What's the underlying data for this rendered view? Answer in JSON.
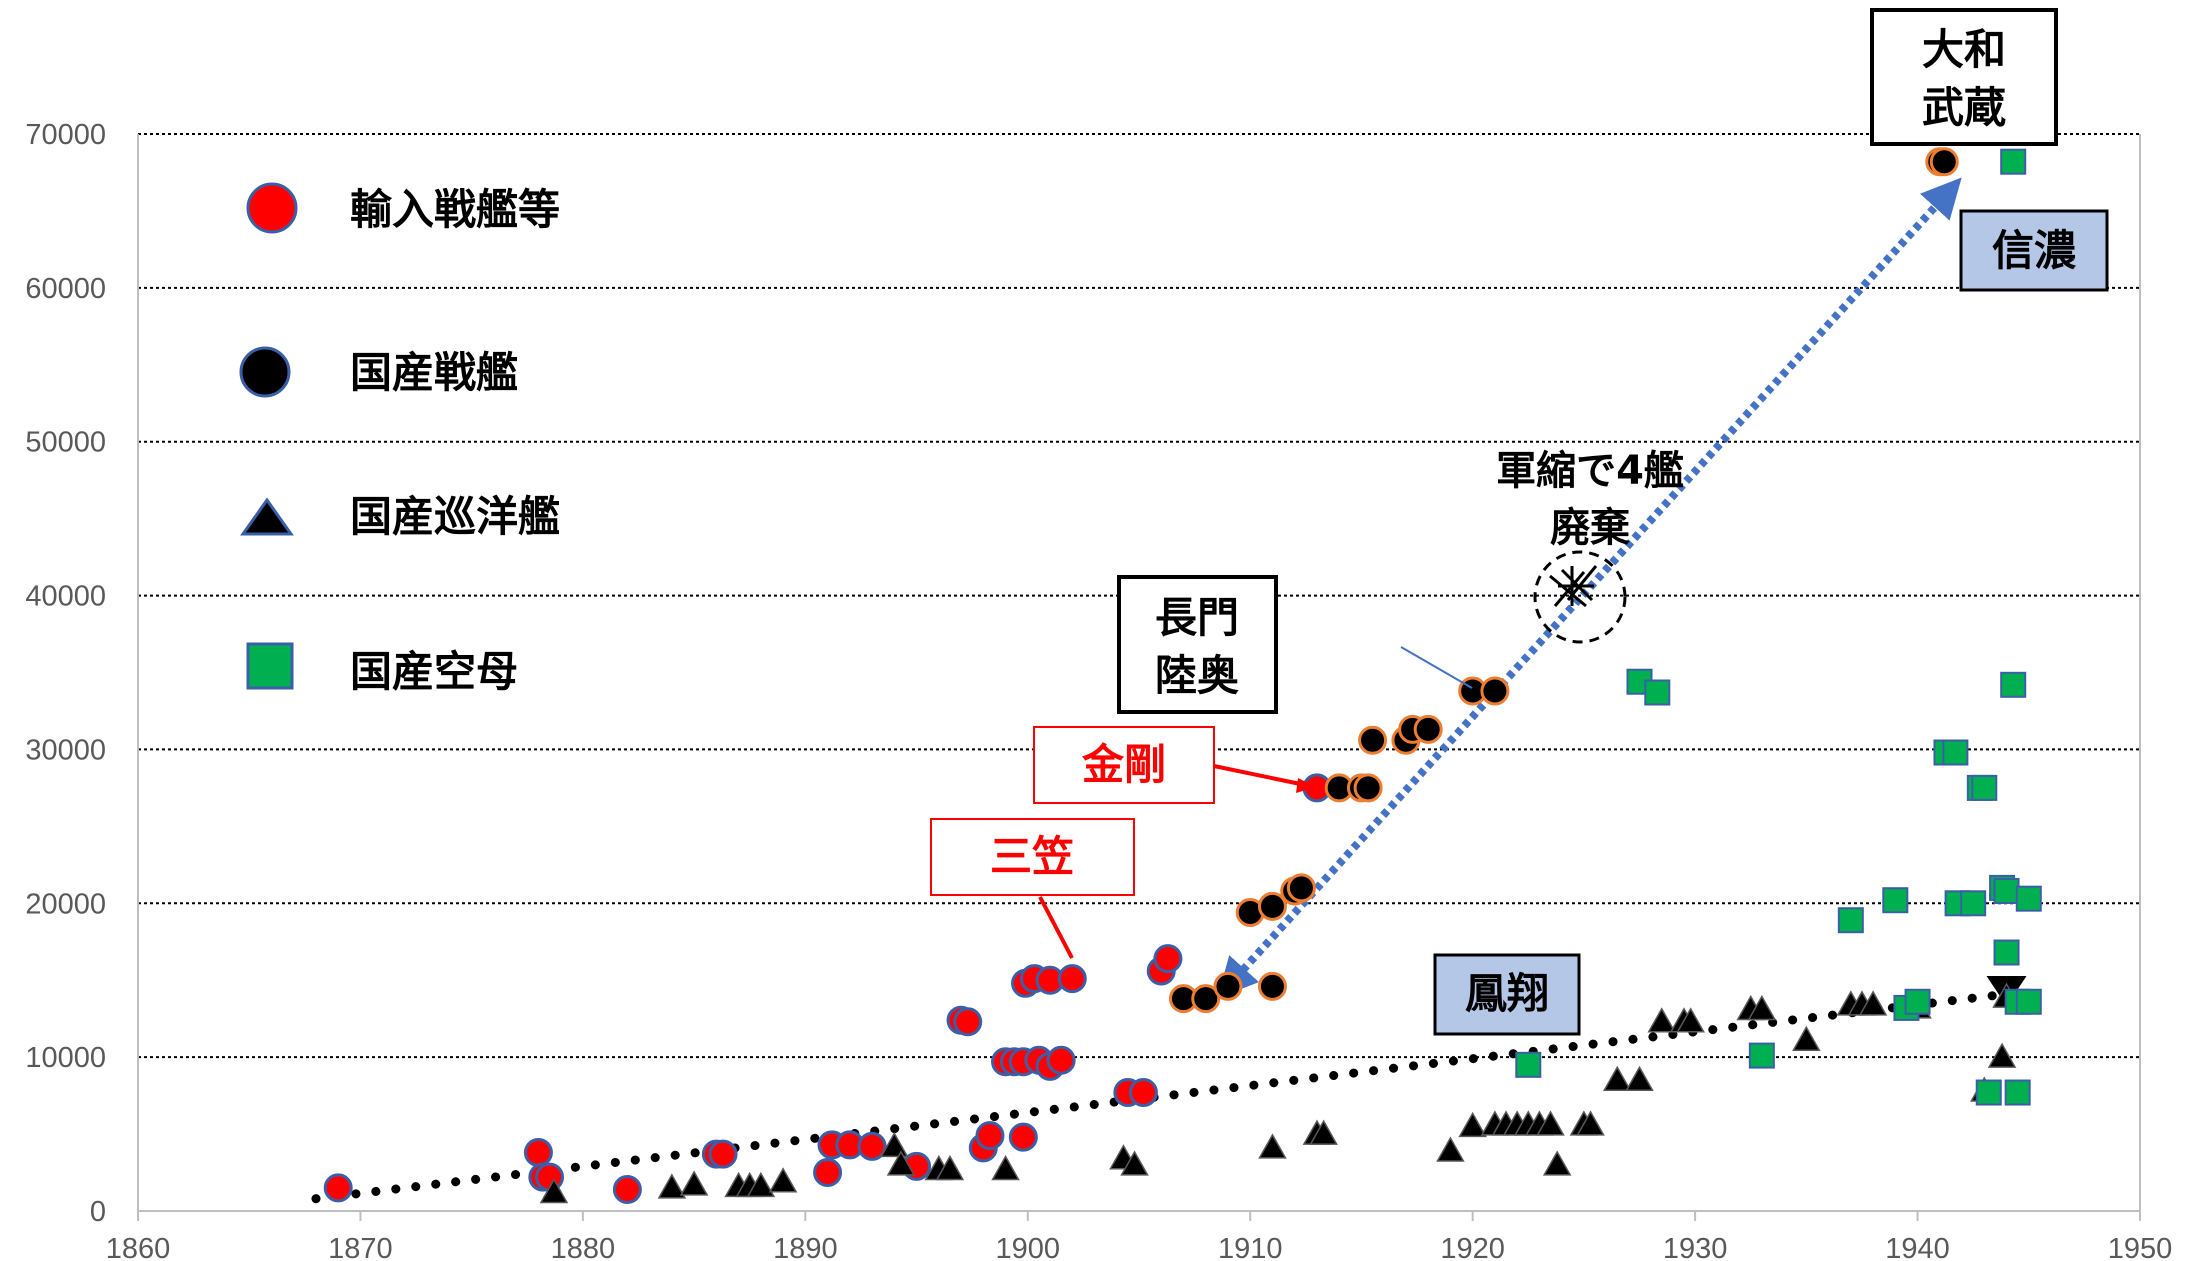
{
  "chart_data": {
    "type": "scatter",
    "title": "",
    "xlabel": "",
    "ylabel": "",
    "xlim": [
      1860,
      1950
    ],
    "ylim": [
      0,
      70000
    ],
    "x_ticks": [
      1860,
      1870,
      1880,
      1890,
      1900,
      1910,
      1920,
      1930,
      1940,
      1950
    ],
    "y_ticks": [
      0,
      10000,
      20000,
      30000,
      40000,
      50000,
      60000,
      70000
    ],
    "grid": "horizontal dotted",
    "legend_position": "top-left",
    "series": [
      {
        "name": "輸入戦艦等",
        "marker": "circle",
        "color": "#ff0000",
        "points": [
          [
            1869,
            1500
          ],
          [
            1878,
            3800
          ],
          [
            1878.2,
            2200
          ],
          [
            1878.5,
            2200
          ],
          [
            1882,
            1400
          ],
          [
            1886,
            3700
          ],
          [
            1886.3,
            3700
          ],
          [
            1891,
            2500
          ],
          [
            1891.2,
            4300
          ],
          [
            1892,
            4300
          ],
          [
            1893,
            4200
          ],
          [
            1895,
            2900
          ],
          [
            1897,
            12400
          ],
          [
            1897.3,
            12300
          ],
          [
            1898,
            4100
          ],
          [
            1898.3,
            4900
          ],
          [
            1899,
            9700
          ],
          [
            1899.4,
            9700
          ],
          [
            1899.8,
            9700
          ],
          [
            1899.9,
            14800
          ],
          [
            1900.3,
            15100
          ],
          [
            1900.5,
            9800
          ],
          [
            1901,
            15000
          ],
          [
            1901,
            9400
          ],
          [
            1901.5,
            9800
          ],
          [
            1902,
            15100
          ],
          [
            1899.8,
            4800
          ],
          [
            1904.5,
            7700
          ],
          [
            1905.2,
            7700
          ],
          [
            1906,
            15600
          ],
          [
            1906.3,
            16400
          ],
          [
            1913,
            27500
          ]
        ]
      },
      {
        "name": "国産戦艦",
        "marker": "circle",
        "color": "#000000",
        "points": [
          [
            1907,
            13800
          ],
          [
            1908,
            13800
          ],
          [
            1909,
            14600
          ],
          [
            1910,
            19400
          ],
          [
            1911,
            19800
          ],
          [
            1911,
            14600
          ],
          [
            1912,
            20800
          ],
          [
            1912.3,
            21000
          ],
          [
            1914,
            27500
          ],
          [
            1915,
            27500
          ],
          [
            1915.3,
            27500
          ],
          [
            1915.5,
            30600
          ],
          [
            1917,
            30600
          ],
          [
            1917.3,
            31300
          ],
          [
            1918,
            31300
          ],
          [
            1920,
            33800
          ],
          [
            1921,
            33800
          ],
          [
            1941,
            68200
          ],
          [
            1941.2,
            68200
          ]
        ]
      },
      {
        "name": "国産巡洋艦",
        "marker": "triangle",
        "color": "#000000",
        "points": [
          [
            1878.7,
            1200
          ],
          [
            1884,
            1500
          ],
          [
            1885,
            1700
          ],
          [
            1887,
            1600
          ],
          [
            1887.5,
            1600
          ],
          [
            1888,
            1600
          ],
          [
            1889,
            1900
          ],
          [
            1894,
            4200
          ],
          [
            1894.3,
            3000
          ],
          [
            1896,
            2700
          ],
          [
            1896.5,
            2700
          ],
          [
            1899,
            2700
          ],
          [
            1904.3,
            3400
          ],
          [
            1904.8,
            3000
          ],
          [
            1911,
            4100
          ],
          [
            1913,
            5000
          ],
          [
            1913.3,
            5000
          ],
          [
            1919,
            3900
          ],
          [
            1920,
            5500
          ],
          [
            1921,
            5600
          ],
          [
            1921.5,
            5600
          ],
          [
            1922,
            5600
          ],
          [
            1922.5,
            5600
          ],
          [
            1923,
            5600
          ],
          [
            1923.5,
            5600
          ],
          [
            1923.8,
            3000
          ],
          [
            1925,
            5600
          ],
          [
            1925.3,
            5600
          ],
          [
            1926.5,
            8500
          ],
          [
            1927.5,
            8500
          ],
          [
            1928.5,
            12300
          ],
          [
            1929.5,
            12300
          ],
          [
            1929.8,
            12300
          ],
          [
            1932.5,
            13100
          ],
          [
            1933,
            13100
          ],
          [
            1935,
            11100
          ],
          [
            1937,
            13400
          ],
          [
            1937.5,
            13400
          ],
          [
            1938,
            13400
          ],
          [
            1940,
            13200
          ],
          [
            1943,
            7800
          ],
          [
            1943.8,
            10000
          ],
          [
            1944,
            13900
          ]
        ]
      },
      {
        "name": "国産空母",
        "marker": "square",
        "color": "#00b050",
        "points": [
          [
            1922.5,
            9500
          ],
          [
            1927.5,
            34400
          ],
          [
            1928.3,
            33700
          ],
          [
            1933,
            10100
          ],
          [
            1937,
            18900
          ],
          [
            1939,
            20200
          ],
          [
            1939.5,
            13200
          ],
          [
            1940,
            13600
          ],
          [
            1941.3,
            29800
          ],
          [
            1941.7,
            29800
          ],
          [
            1941.8,
            20000
          ],
          [
            1942.5,
            20000
          ],
          [
            1942.8,
            27500
          ],
          [
            1943,
            27500
          ],
          [
            1943.2,
            7700
          ],
          [
            1943.8,
            21000
          ],
          [
            1944,
            20800
          ],
          [
            1944,
            16800
          ],
          [
            1944.3,
            34200
          ],
          [
            1944.5,
            13600
          ],
          [
            1944.5,
            7700
          ],
          [
            1945,
            20300
          ],
          [
            1945,
            13600
          ],
          [
            1944.3,
            68200
          ]
        ]
      }
    ],
    "trend_lines": [
      {
        "style": "black dotted",
        "from": [
          1868,
          800
        ],
        "to": [
          1944,
          14100
        ]
      },
      {
        "style": "blue dotted double-arrow",
        "from": [
          1909,
          14600
        ],
        "to": [
          1941.5,
          66400
        ]
      }
    ],
    "annotations": {
      "yamato_musashi": "大和\n武蔵",
      "shinano": "信濃",
      "gunshuku": "軍縮で4艦\n廃棄",
      "nagato_mutsu": "長門\n陸奥",
      "kongo": "金剛",
      "mikasa": "三笠",
      "hosho": "鳳翔"
    }
  },
  "legend": {
    "imported": "輸入戦艦等",
    "domestic_battleship": "国産戦艦",
    "domestic_cruiser": "国産巡洋艦",
    "domestic_carrier": "国産空母"
  },
  "labels": {
    "yamato": "大和",
    "musashi": "武蔵",
    "shinano": "信濃",
    "gunshuku_1": "軍縮で4艦",
    "gunshuku_2": "廃棄",
    "nagato": "長門",
    "mutsu": "陸奥",
    "kongo": "金剛",
    "mikasa": "三笠",
    "hosho": "鳳翔"
  },
  "colors": {
    "imported": "#ff0000",
    "battleship": "#000000",
    "carrier": "#00b050",
    "marker_edge_red": "#3a5fa8",
    "marker_edge_black": "#ed7d31",
    "blue_arrow": "#4472c4",
    "label_fill_blue": "#b4c7e7"
  }
}
